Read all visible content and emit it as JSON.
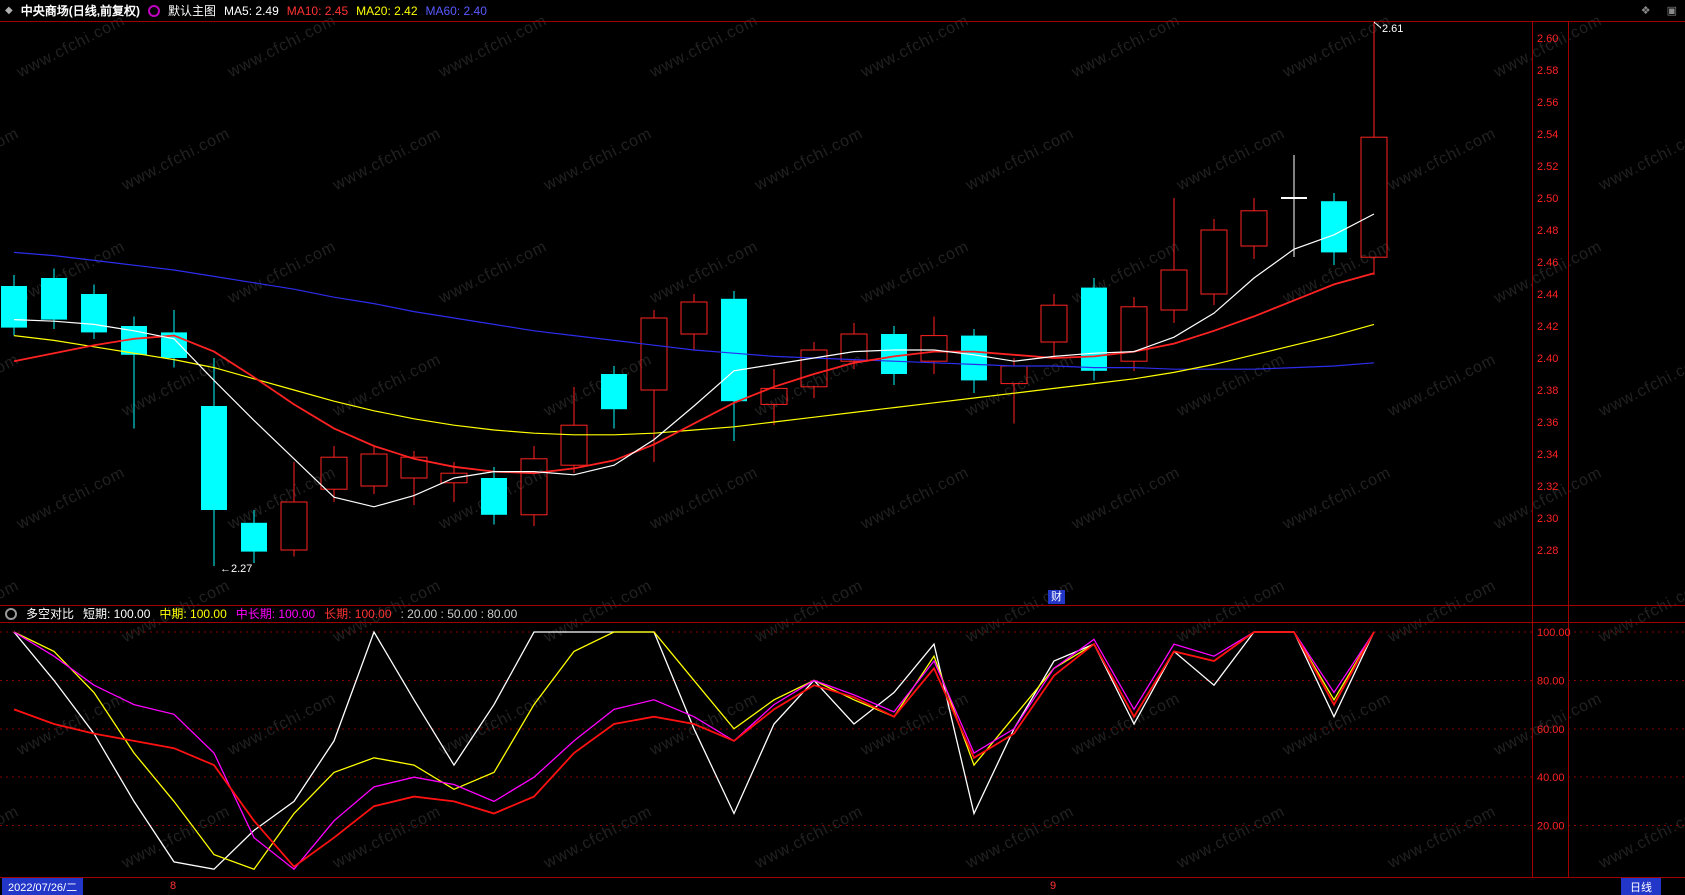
{
  "watermark": "www.cfchi.com",
  "icons": {
    "logo": "◆",
    "diamond": "❖",
    "window": "▣"
  },
  "topbar": {
    "title": "中央商场(日线,前复权)",
    "view_label": "默认主图",
    "ma_labels": [
      {
        "text": "MA5: 2.49",
        "color": "#ffffff"
      },
      {
        "text": "MA10: 2.45",
        "color": "#ff3232"
      },
      {
        "text": "MA20: 2.42",
        "color": "#ffff00"
      },
      {
        "text": "MA60: 2.40",
        "color": "#5a5aff"
      }
    ]
  },
  "indicator_header": {
    "name": "多空对比",
    "items": [
      {
        "text": "短期: 100.00",
        "color": "#ffffff"
      },
      {
        "text": "中期: 100.00",
        "color": "#ffff00"
      },
      {
        "text": "中长期: 100.00",
        "color": "#ff00ff"
      },
      {
        "text": "长期: 100.00",
        "color": "#ff3232"
      }
    ],
    "params_text": ": 20.00 : 50.00 : 80.00"
  },
  "main": {
    "high_label": "2.61",
    "low_label": "←2.27",
    "event_label": "财"
  },
  "bottom": {
    "date": "2022/07/26/二",
    "period": "日线"
  },
  "chart_data": {
    "type": "candlestick",
    "title": "中央商场(日线,前复权)",
    "period": "日线",
    "adjust": "前复权",
    "colors": {
      "up": "#ff2222",
      "down": "#00ffff",
      "doji": "#ffffff",
      "border": "#a00000",
      "grid": "#8a0000",
      "axis_text": "#ff2222",
      "background": "#000000"
    },
    "main": {
      "price_axis_ticks": [
        2.6,
        2.58,
        2.56,
        2.54,
        2.52,
        2.5,
        2.48,
        2.46,
        2.44,
        2.42,
        2.4,
        2.38,
        2.36,
        2.34,
        2.32,
        2.3,
        2.28
      ],
      "price_range": [
        2.27,
        2.61
      ],
      "candles": [
        [
          2.445,
          2.452,
          2.414,
          2.419
        ],
        [
          2.45,
          2.456,
          2.418,
          2.424
        ],
        [
          2.44,
          2.446,
          2.412,
          2.416
        ],
        [
          2.42,
          2.426,
          2.356,
          2.402
        ],
        [
          2.416,
          2.43,
          2.394,
          2.4
        ],
        [
          2.37,
          2.4,
          2.27,
          2.305
        ],
        [
          2.297,
          2.305,
          2.272,
          2.279
        ],
        [
          2.28,
          2.335,
          2.276,
          2.31
        ],
        [
          2.318,
          2.345,
          2.31,
          2.338
        ],
        [
          2.32,
          2.345,
          2.315,
          2.34
        ],
        [
          2.325,
          2.342,
          2.308,
          2.338
        ],
        [
          2.322,
          2.335,
          2.31,
          2.328
        ],
        [
          2.325,
          2.332,
          2.296,
          2.302
        ],
        [
          2.302,
          2.345,
          2.295,
          2.337
        ],
        [
          2.333,
          2.382,
          2.328,
          2.358
        ],
        [
          2.39,
          2.395,
          2.356,
          2.368
        ],
        [
          2.38,
          2.43,
          2.335,
          2.425
        ],
        [
          2.415,
          2.44,
          2.405,
          2.435
        ],
        [
          2.437,
          2.442,
          2.348,
          2.373
        ],
        [
          2.371,
          2.393,
          2.358,
          2.381
        ],
        [
          2.382,
          2.41,
          2.375,
          2.405
        ],
        [
          2.398,
          2.422,
          2.393,
          2.415
        ],
        [
          2.415,
          2.42,
          2.383,
          2.39
        ],
        [
          2.398,
          2.426,
          2.39,
          2.414
        ],
        [
          2.414,
          2.418,
          2.378,
          2.386
        ],
        [
          2.384,
          2.4,
          2.359,
          2.395
        ],
        [
          2.41,
          2.44,
          2.4,
          2.433
        ],
        [
          2.444,
          2.45,
          2.386,
          2.392
        ],
        [
          2.398,
          2.438,
          2.392,
          2.432
        ],
        [
          2.43,
          2.5,
          2.422,
          2.455
        ],
        [
          2.44,
          2.487,
          2.433,
          2.48
        ],
        [
          2.47,
          2.5,
          2.462,
          2.492
        ],
        [
          2.5,
          2.527,
          2.463,
          2.5
        ],
        [
          2.498,
          2.503,
          2.458,
          2.466
        ],
        [
          2.463,
          2.61,
          2.452,
          2.538
        ]
      ],
      "overlays": [
        {
          "id": "ma60",
          "name": "MA60",
          "color": "#2d2dee",
          "width": 1.2,
          "values": [
            2.466,
            2.464,
            2.461,
            2.458,
            2.455,
            2.451,
            2.447,
            2.443,
            2.438,
            2.434,
            2.429,
            2.425,
            2.421,
            2.417,
            2.414,
            2.411,
            2.408,
            2.405,
            2.403,
            2.401,
            2.4,
            2.399,
            2.398,
            2.397,
            2.396,
            2.395,
            2.395,
            2.394,
            2.394,
            2.393,
            2.393,
            2.393,
            2.394,
            2.395,
            2.397
          ]
        },
        {
          "id": "ma20",
          "name": "MA20",
          "color": "#ffff00",
          "width": 1.2,
          "values": [
            2.414,
            2.411,
            2.407,
            2.403,
            2.399,
            2.394,
            2.387,
            2.38,
            2.373,
            2.367,
            2.362,
            2.358,
            2.355,
            2.353,
            2.352,
            2.352,
            2.353,
            2.355,
            2.357,
            2.36,
            2.363,
            2.366,
            2.369,
            2.372,
            2.375,
            2.378,
            2.381,
            2.384,
            2.387,
            2.391,
            2.396,
            2.402,
            2.408,
            2.414,
            2.421
          ]
        },
        {
          "id": "ma10",
          "name": "MA10",
          "color": "#ff2222",
          "width": 1.8,
          "values": [
            2.398,
            2.403,
            2.408,
            2.412,
            2.414,
            2.404,
            2.388,
            2.371,
            2.356,
            2.345,
            2.337,
            2.332,
            2.329,
            2.328,
            2.331,
            2.336,
            2.346,
            2.359,
            2.372,
            2.382,
            2.39,
            2.397,
            2.401,
            2.404,
            2.404,
            2.402,
            2.4,
            2.401,
            2.404,
            2.409,
            2.417,
            2.426,
            2.436,
            2.446,
            2.453
          ]
        },
        {
          "id": "ma5",
          "name": "MA5",
          "color": "#ffffff",
          "width": 1.2,
          "values": [
            2.424,
            2.423,
            2.421,
            2.417,
            2.412,
            2.386,
            2.361,
            2.337,
            2.313,
            2.307,
            2.314,
            2.325,
            2.329,
            2.329,
            2.327,
            2.333,
            2.349,
            2.37,
            2.392,
            2.396,
            2.4,
            2.404,
            2.405,
            2.405,
            2.402,
            2.398,
            2.401,
            2.403,
            2.404,
            2.413,
            2.428,
            2.45,
            2.468,
            2.477,
            2.49
          ]
        }
      ],
      "annotations": {
        "high": {
          "index": 34,
          "price": 2.61
        },
        "low": {
          "index": 5,
          "price": 2.27
        },
        "event": {
          "index": 26
        }
      }
    },
    "indicator": {
      "name": "多空对比",
      "range": [
        0,
        100
      ],
      "axis_ticks": [
        100,
        80,
        60,
        40,
        20
      ],
      "params": [
        20,
        50,
        80
      ],
      "series": [
        {
          "id": "short",
          "name": "短期",
          "color": "#ffffff",
          "width": 1.3,
          "values": [
            100,
            80,
            58,
            30,
            5,
            2,
            18,
            30,
            55,
            100,
            72,
            45,
            70,
            100,
            100,
            100,
            100,
            60,
            25,
            62,
            80,
            62,
            75,
            95,
            25,
            60,
            88,
            95,
            62,
            92,
            78,
            100,
            100,
            65,
            100
          ]
        },
        {
          "id": "mid",
          "name": "中期",
          "color": "#ffff00",
          "width": 1.3,
          "values": [
            100,
            92,
            75,
            50,
            30,
            8,
            2,
            25,
            42,
            48,
            45,
            35,
            42,
            70,
            92,
            100,
            100,
            80,
            60,
            72,
            80,
            72,
            65,
            90,
            45,
            65,
            85,
            95,
            65,
            92,
            88,
            100,
            100,
            72,
            100
          ]
        },
        {
          "id": "midlong",
          "name": "中长期",
          "color": "#ff00ff",
          "width": 1.3,
          "values": [
            100,
            90,
            78,
            70,
            66,
            50,
            15,
            2,
            22,
            36,
            40,
            37,
            30,
            40,
            55,
            68,
            72,
            65,
            55,
            70,
            80,
            74,
            67,
            88,
            50,
            60,
            85,
            97,
            68,
            95,
            90,
            100,
            100,
            75,
            100
          ]
        },
        {
          "id": "long",
          "name": "长期",
          "color": "#ff1111",
          "width": 1.8,
          "values": [
            68,
            62,
            58,
            55,
            52,
            45,
            22,
            3,
            15,
            28,
            32,
            30,
            25,
            32,
            50,
            62,
            65,
            62,
            55,
            68,
            78,
            73,
            65,
            85,
            48,
            58,
            82,
            95,
            65,
            92,
            88,
            100,
            100,
            70,
            100
          ]
        }
      ]
    },
    "x_axis": {
      "month_markers": [
        {
          "label": "8",
          "index": 4
        },
        {
          "label": "9",
          "index": 26
        }
      ],
      "crosshair_date": "2022/07/26/二"
    }
  }
}
